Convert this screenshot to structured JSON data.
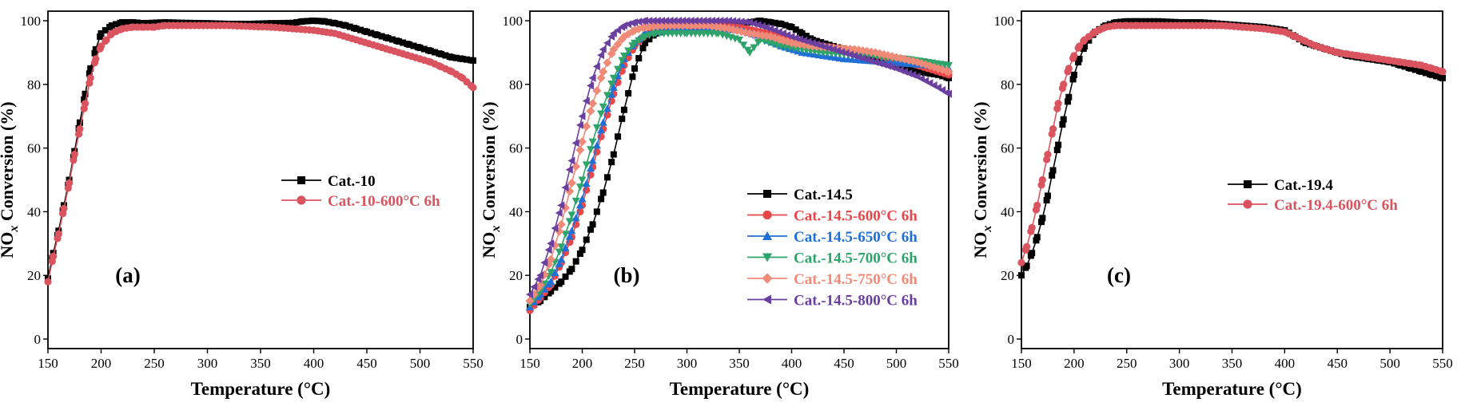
{
  "chart_data": [
    {
      "type": "line",
      "panel_label": "(a)",
      "xlabel": "Temperature (°C)",
      "ylabel": {
        "main": "NO",
        "sub": "x",
        "rest": " Conversion (%)"
      },
      "xlim": [
        150,
        550
      ],
      "ylim": [
        -3,
        103
      ],
      "xticks": [
        150,
        200,
        250,
        300,
        350,
        400,
        450,
        500,
        550
      ],
      "yticks": [
        0,
        20,
        40,
        60,
        80,
        100
      ],
      "legend_placement": "center-right",
      "series": [
        {
          "name": "Cat.-10",
          "color": "#000000",
          "marker": "square",
          "x": [
            150,
            155,
            160,
            165,
            170,
            175,
            180,
            185,
            190,
            195,
            200,
            210,
            220,
            230,
            240,
            260,
            280,
            300,
            320,
            340,
            360,
            380,
            390,
            400,
            410,
            420,
            430,
            440,
            450,
            460,
            470,
            480,
            490,
            500,
            510,
            520,
            530,
            540,
            550
          ],
          "y": [
            19,
            27,
            34,
            42,
            50,
            59,
            68,
            77,
            85,
            91,
            96,
            98.5,
            99.5,
            99.5,
            99.2,
            99.5,
            99.3,
            99.2,
            99,
            99,
            99.2,
            99.3,
            99.8,
            100,
            99.8,
            99.2,
            98.5,
            97.5,
            96.5,
            95.5,
            94.5,
            93.5,
            92.5,
            91.5,
            90.5,
            89.5,
            88.5,
            88,
            87.5
          ]
        },
        {
          "name": "Cat.-10-600°C 6h",
          "color": "#d9545e",
          "marker": "circle",
          "x": [
            150,
            155,
            160,
            165,
            170,
            175,
            180,
            185,
            190,
            195,
            200,
            205,
            210,
            220,
            230,
            240,
            250,
            260,
            280,
            300,
            320,
            340,
            360,
            380,
            400,
            420,
            440,
            460,
            480,
            500,
            510,
            520,
            530,
            540,
            550
          ],
          "y": [
            18,
            26,
            33,
            41,
            49,
            58,
            66,
            74,
            82,
            88,
            92,
            94,
            96,
            97.5,
            98,
            98,
            98,
            98.5,
            98.5,
            98.5,
            98.5,
            98.2,
            98,
            97.5,
            97,
            96,
            94,
            92,
            90,
            88,
            87,
            85.5,
            84,
            82,
            79
          ]
        }
      ]
    },
    {
      "type": "line",
      "panel_label": "(b)",
      "xlabel": "Temperature (°C)",
      "ylabel": {
        "main": "NO",
        "sub": "x",
        "rest": " Conversion (%)"
      },
      "xlim": [
        150,
        550
      ],
      "ylim": [
        -3,
        103
      ],
      "xticks": [
        150,
        200,
        250,
        300,
        350,
        400,
        450,
        500,
        550
      ],
      "yticks": [
        0,
        20,
        40,
        60,
        80,
        100
      ],
      "legend_placement": "lower-right",
      "series": [
        {
          "name": "Cat.-14.5",
          "color": "#000000",
          "marker": "square",
          "x": [
            150,
            160,
            170,
            180,
            190,
            200,
            210,
            220,
            230,
            240,
            250,
            260,
            270,
            280,
            300,
            320,
            340,
            360,
            370,
            380,
            390,
            400,
            410,
            420,
            440,
            460,
            480,
            500,
            520,
            540,
            550
          ],
          "y": [
            10,
            12,
            15,
            18,
            22,
            28,
            36,
            46,
            58,
            72,
            85,
            93,
            96,
            97,
            97.5,
            98,
            98.5,
            99.5,
            100,
            99.5,
            99,
            98,
            96,
            94,
            92,
            90,
            88,
            86,
            84,
            83,
            82
          ]
        },
        {
          "name": "Cat.-14.5-600°C 6h",
          "color": "#e8484a",
          "marker": "circle",
          "x": [
            150,
            160,
            170,
            180,
            190,
            200,
            210,
            220,
            230,
            240,
            250,
            260,
            270,
            300,
            330,
            350,
            370,
            390,
            410,
            430,
            450,
            470,
            490,
            510,
            530,
            550
          ],
          "y": [
            9,
            13,
            17,
            24,
            32,
            42,
            54,
            66,
            77,
            86,
            92,
            95.5,
            97,
            98,
            98.5,
            98,
            96.5,
            95,
            93,
            92,
            91,
            90,
            88.5,
            87,
            85,
            83
          ]
        },
        {
          "name": "Cat.-14.5-650°C 6h",
          "color": "#1f6fd6",
          "marker": "triangle-up",
          "x": [
            150,
            160,
            170,
            180,
            190,
            200,
            210,
            220,
            230,
            240,
            250,
            260,
            270,
            300,
            330,
            350,
            370,
            390,
            410,
            430,
            450,
            470,
            490,
            510,
            530,
            550
          ],
          "y": [
            10,
            14,
            18,
            25,
            34,
            44,
            56,
            68,
            79,
            88,
            93,
            96,
            96.5,
            97,
            97.5,
            97,
            95,
            92,
            90,
            89,
            88,
            87.5,
            87,
            86.5,
            86,
            85
          ]
        },
        {
          "name": "Cat.-14.5-700°C 6h",
          "color": "#2ea36a",
          "marker": "triangle-down",
          "x": [
            150,
            160,
            170,
            180,
            190,
            200,
            210,
            220,
            230,
            240,
            250,
            260,
            270,
            300,
            330,
            350,
            360,
            370,
            390,
            410,
            430,
            450,
            470,
            490,
            510,
            530,
            550
          ],
          "y": [
            11,
            15,
            21,
            29,
            39,
            50,
            62,
            73,
            82,
            89,
            93,
            95,
            96,
            96,
            96,
            94,
            90,
            94,
            92,
            91,
            90,
            89.5,
            89,
            88.5,
            88,
            87,
            86
          ]
        },
        {
          "name": "Cat.-14.5-750°C 6h",
          "color": "#f08a78",
          "marker": "diamond",
          "x": [
            150,
            160,
            170,
            180,
            190,
            200,
            210,
            220,
            230,
            240,
            250,
            260,
            280,
            300,
            320,
            340,
            360,
            380,
            400,
            420,
            440,
            460,
            480,
            500,
            520,
            540,
            550
          ],
          "y": [
            12,
            17,
            25,
            36,
            49,
            62,
            74,
            84,
            91,
            95,
            97,
            98,
            98.5,
            98.5,
            98.5,
            97.5,
            96,
            95,
            93,
            92,
            91.5,
            91,
            90,
            88.5,
            87,
            85,
            84
          ]
        },
        {
          "name": "Cat.-14.5-800°C 6h",
          "color": "#6a3fa0",
          "marker": "triangle-left",
          "x": [
            150,
            160,
            170,
            180,
            190,
            200,
            210,
            220,
            230,
            240,
            250,
            260,
            280,
            300,
            320,
            340,
            360,
            380,
            400,
            420,
            440,
            460,
            480,
            500,
            520,
            540,
            550
          ],
          "y": [
            14,
            20,
            30,
            42,
            56,
            70,
            82,
            91,
            96,
            98.5,
            99.5,
            100,
            100,
            100,
            100,
            100,
            99.5,
            97.5,
            95,
            93,
            91,
            89,
            87,
            85,
            82.5,
            79,
            77
          ]
        }
      ]
    },
    {
      "type": "line",
      "panel_label": "(c)",
      "xlabel": "Temperature (°C)",
      "ylabel": {
        "main": "NO",
        "sub": "x",
        "rest": " Conversion (%)"
      },
      "xlim": [
        150,
        550
      ],
      "ylim": [
        -3,
        103
      ],
      "xticks": [
        150,
        200,
        250,
        300,
        350,
        400,
        450,
        500,
        550
      ],
      "yticks": [
        0,
        20,
        40,
        60,
        80,
        100
      ],
      "legend_placement": "center-right",
      "series": [
        {
          "name": "Cat.-19.4",
          "color": "#000000",
          "marker": "square",
          "x": [
            150,
            155,
            160,
            165,
            170,
            175,
            180,
            185,
            190,
            195,
            200,
            205,
            210,
            220,
            230,
            240,
            250,
            260,
            280,
            300,
            320,
            340,
            360,
            380,
            400,
            410,
            420,
            430,
            440,
            450,
            460,
            470,
            480,
            490,
            500,
            510,
            520,
            530,
            540,
            550
          ],
          "y": [
            20,
            23,
            27,
            32,
            38,
            45,
            53,
            61,
            69,
            76,
            83,
            88,
            92,
            96.5,
            98.5,
            99.5,
            99.8,
            99.8,
            99.8,
            99.5,
            99.5,
            99,
            98.5,
            98,
            97,
            95,
            93,
            92,
            91,
            90,
            89,
            88.5,
            88,
            87.5,
            87,
            86,
            85,
            84,
            83,
            82
          ]
        },
        {
          "name": "Cat.-19.4-600°C 6h",
          "color": "#d9545e",
          "marker": "circle",
          "x": [
            150,
            155,
            160,
            165,
            170,
            175,
            180,
            185,
            190,
            195,
            200,
            205,
            210,
            220,
            230,
            240,
            250,
            260,
            280,
            300,
            320,
            340,
            360,
            380,
            400,
            410,
            420,
            430,
            440,
            450,
            460,
            470,
            480,
            490,
            500,
            510,
            520,
            530,
            540,
            550
          ],
          "y": [
            24,
            29,
            35,
            42,
            50,
            58,
            66,
            74,
            80,
            85,
            89,
            92,
            94,
            96.5,
            98,
            98.5,
            98.5,
            98.5,
            98.5,
            98.5,
            98.5,
            98.5,
            98,
            97.5,
            96.5,
            95,
            93.5,
            92,
            91,
            90,
            89.5,
            89,
            88.5,
            88,
            87.5,
            87,
            86.5,
            86,
            85,
            84
          ]
        }
      ]
    }
  ]
}
